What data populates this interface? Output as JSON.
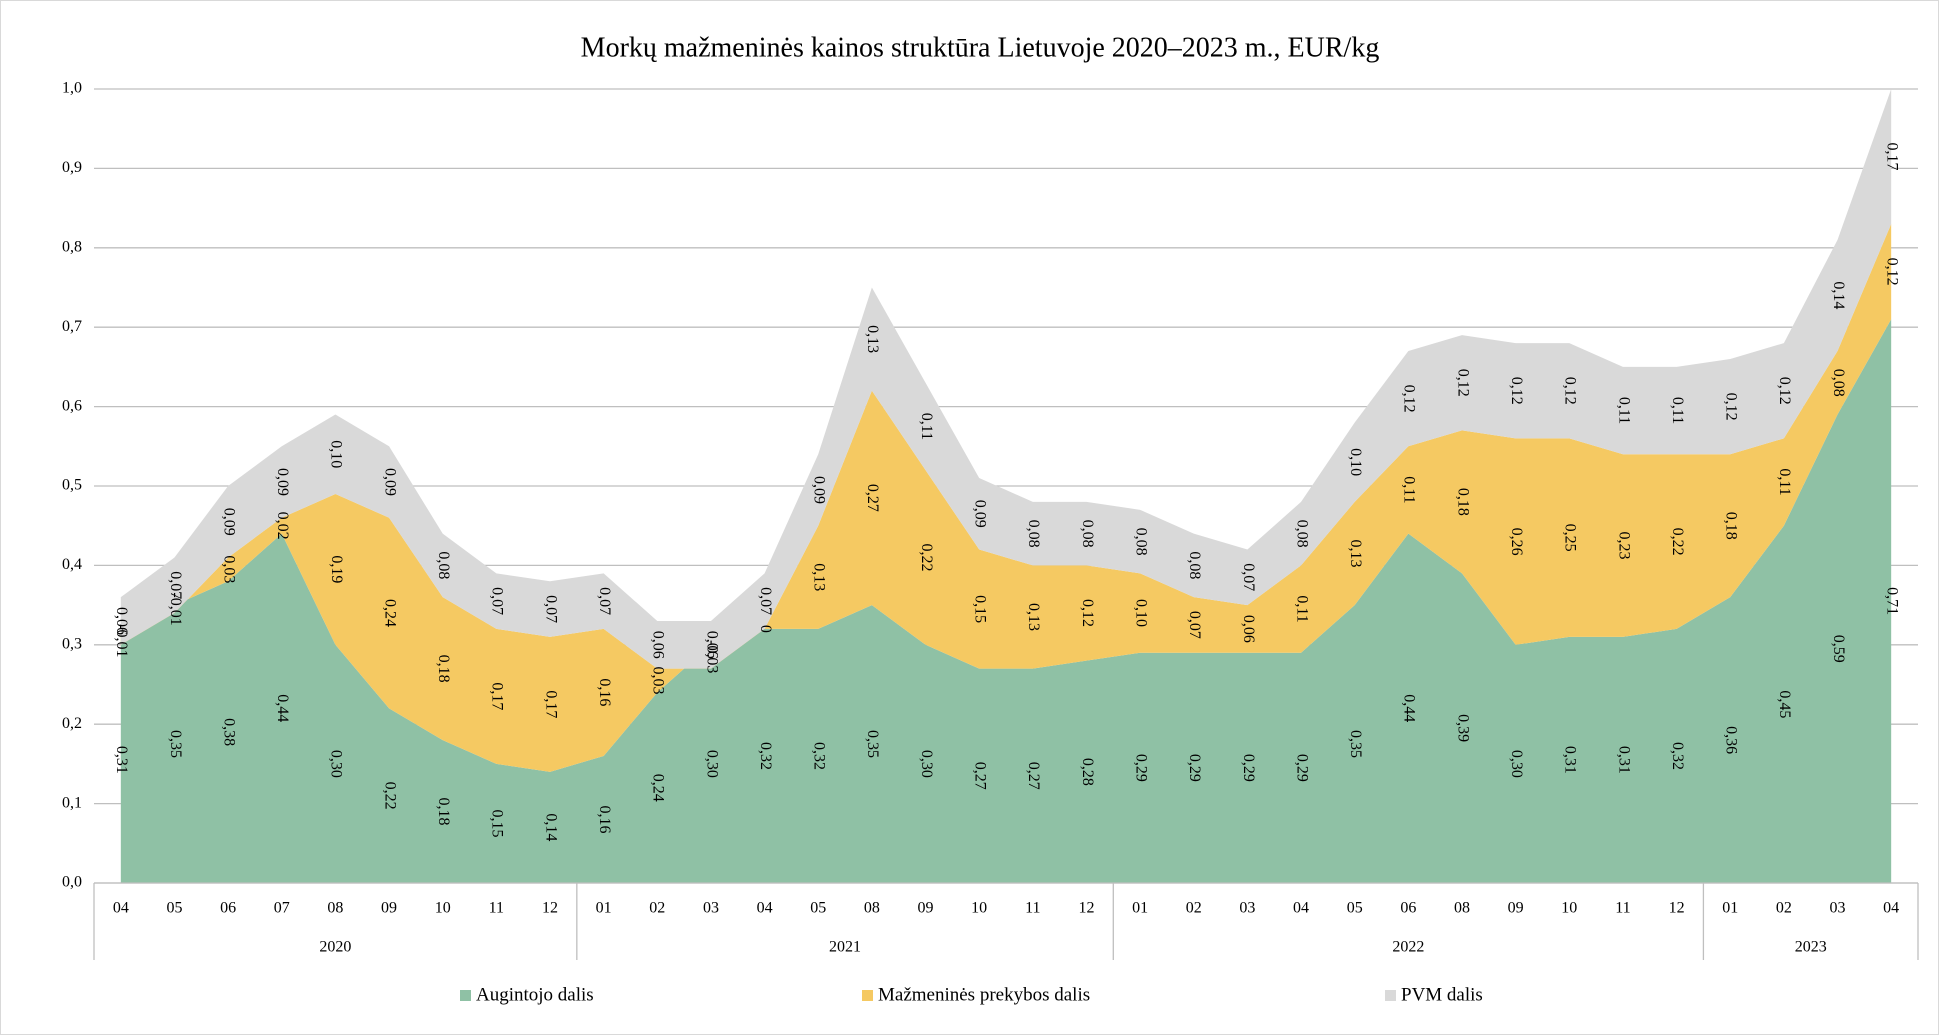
{
  "chart_data": {
    "type": "stacked_area",
    "title": "Morkų mažmeninės kainos struktūra Lietuvoje 2020–2023 m., EUR/kg",
    "groups": [
      {
        "name": "2020",
        "categories": [
          "04",
          "05",
          "06",
          "07",
          "08",
          "09",
          "10",
          "11",
          "12"
        ]
      },
      {
        "name": "2021",
        "categories": [
          "01",
          "02",
          "03",
          "04",
          "05",
          "08",
          "09",
          "10",
          "11",
          "12"
        ]
      },
      {
        "name": "2022",
        "categories": [
          "01",
          "02",
          "03",
          "04",
          "05",
          "06",
          "08",
          "09",
          "10",
          "11",
          "12"
        ]
      },
      {
        "name": "2023",
        "categories": [
          "01",
          "02",
          "03",
          "04"
        ]
      }
    ],
    "series": [
      {
        "name": "Augintojo dalis",
        "color": "#8fc1a5",
        "values": [
          0.31,
          0.35,
          0.38,
          0.44,
          0.3,
          0.22,
          0.18,
          0.15,
          0.14,
          0.16,
          0.24,
          0.3,
          0.32,
          0.32,
          0.35,
          0.3,
          0.27,
          0.27,
          0.28,
          0.29,
          0.29,
          0.29,
          0.29,
          0.35,
          0.44,
          0.39,
          0.3,
          0.31,
          0.31,
          0.32,
          0.36,
          0.45,
          0.59,
          0.71
        ],
        "value_labels": [
          "0,31",
          "0,35",
          "0,38",
          "0,44",
          "0,30",
          "0,22",
          "0,18",
          "0,15",
          "0,14",
          "0,16",
          "0,24",
          "0,30",
          "0,32",
          "0,32",
          "0,35",
          "0,30",
          "0,27",
          "0,27",
          "0,28",
          "0,29",
          "0,29",
          "0,29",
          "0,29",
          "0,35",
          "0,44",
          "0,39",
          "0,30",
          "0,31",
          "0,31",
          "0,32",
          "0,36",
          "0,45",
          "0,59",
          "0,71"
        ]
      },
      {
        "name": "Mažmeninės prekybos dalis",
        "color": "#f5c962",
        "values": [
          -0.01,
          -0.01,
          0.03,
          0.02,
          0.19,
          0.24,
          0.18,
          0.17,
          0.17,
          0.16,
          0.03,
          -0.03,
          0,
          0.13,
          0.27,
          0.22,
          0.15,
          0.13,
          0.12,
          0.1,
          0.07,
          0.06,
          0.11,
          0.13,
          0.11,
          0.18,
          0.26,
          0.25,
          0.23,
          0.22,
          0.18,
          0.11,
          0.08,
          0.12
        ],
        "value_labels": [
          "-0,01",
          "-0,01",
          "0,03",
          "0,02",
          "0,19",
          "0,24",
          "0,18",
          "0,17",
          "0,17",
          "0,16",
          "0,03",
          "-0,03",
          "0",
          "0,13",
          "0,27",
          "0,22",
          "0,15",
          "0,13",
          "0,12",
          "0,10",
          "0,07",
          "0,06",
          "0,11",
          "0,13",
          "0,11",
          "0,18",
          "0,26",
          "0,25",
          "0,23",
          "0,22",
          "0,18",
          "0,11",
          "0,08",
          "0,12"
        ]
      },
      {
        "name": "PVM dalis",
        "color": "#d9d9d9",
        "values": [
          0.06,
          0.07,
          0.09,
          0.09,
          0.1,
          0.09,
          0.08,
          0.07,
          0.07,
          0.07,
          0.06,
          0.06,
          0.07,
          0.09,
          0.13,
          0.11,
          0.09,
          0.08,
          0.08,
          0.08,
          0.08,
          0.07,
          0.08,
          0.1,
          0.12,
          0.12,
          0.12,
          0.12,
          0.11,
          0.11,
          0.12,
          0.12,
          0.14,
          0.17
        ],
        "value_labels": [
          "0,06",
          "0,07",
          "0,09",
          "0,09",
          "0,10",
          "0,09",
          "0,08",
          "0,07",
          "0,07",
          "0,07",
          "0,06",
          "0,06",
          "0,07",
          "0,09",
          "0,13",
          "0,11",
          "0,09",
          "0,08",
          "0,08",
          "0,08",
          "0,08",
          "0,07",
          "0,08",
          "0,10",
          "0,12",
          "0,12",
          "0,12",
          "0,12",
          "0,11",
          "0,11",
          "0,12",
          "0,12",
          "0,14",
          "0,17"
        ]
      }
    ],
    "ylim": [
      0,
      1
    ],
    "yticks": [
      {
        "value": 0,
        "label": "0,0"
      },
      {
        "value": 0.1,
        "label": "0,1"
      },
      {
        "value": 0.2,
        "label": "0,2"
      },
      {
        "value": 0.3,
        "label": "0,3"
      },
      {
        "value": 0.4,
        "label": "0,4"
      },
      {
        "value": 0.5,
        "label": "0,5"
      },
      {
        "value": 0.6,
        "label": "0,6"
      },
      {
        "value": 0.7,
        "label": "0,7"
      },
      {
        "value": 0.8,
        "label": "0,8"
      },
      {
        "value": 0.9,
        "label": "0,9"
      },
      {
        "value": 1,
        "label": "1,0"
      }
    ],
    "grid": true,
    "legend": "bottom"
  }
}
